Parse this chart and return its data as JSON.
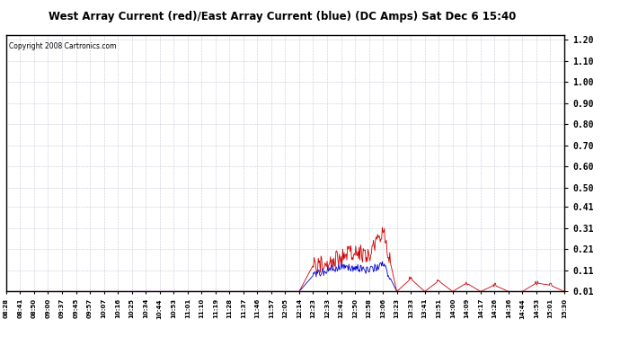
{
  "title": "West Array Current (red)/East Array Current (blue) (DC Amps) Sat Dec 6 15:40",
  "copyright": "Copyright 2008 Cartronics.com",
  "yticks": [
    0.01,
    0.11,
    0.21,
    0.31,
    0.41,
    0.5,
    0.6,
    0.7,
    0.8,
    0.9,
    1.0,
    1.1,
    1.2
  ],
  "ylim": [
    0.01,
    1.22
  ],
  "xtick_labels": [
    "08:28",
    "08:41",
    "08:50",
    "09:00",
    "09:37",
    "09:45",
    "09:57",
    "10:07",
    "10:16",
    "10:25",
    "10:34",
    "10:44",
    "10:53",
    "11:01",
    "11:10",
    "11:19",
    "11:28",
    "11:37",
    "11:46",
    "11:57",
    "12:05",
    "12:14",
    "12:23",
    "12:33",
    "12:42",
    "12:50",
    "12:58",
    "13:06",
    "13:23",
    "13:33",
    "13:41",
    "13:51",
    "14:00",
    "14:09",
    "14:17",
    "14:26",
    "14:36",
    "14:44",
    "14:53",
    "15:01",
    "15:30"
  ],
  "background_color": "#ffffff",
  "grid_color": "#9999bb",
  "border_color": "#000000",
  "title_color": "#000000",
  "red_color": "#cc0000",
  "blue_color": "#0000cc",
  "copyright_color": "#000000"
}
